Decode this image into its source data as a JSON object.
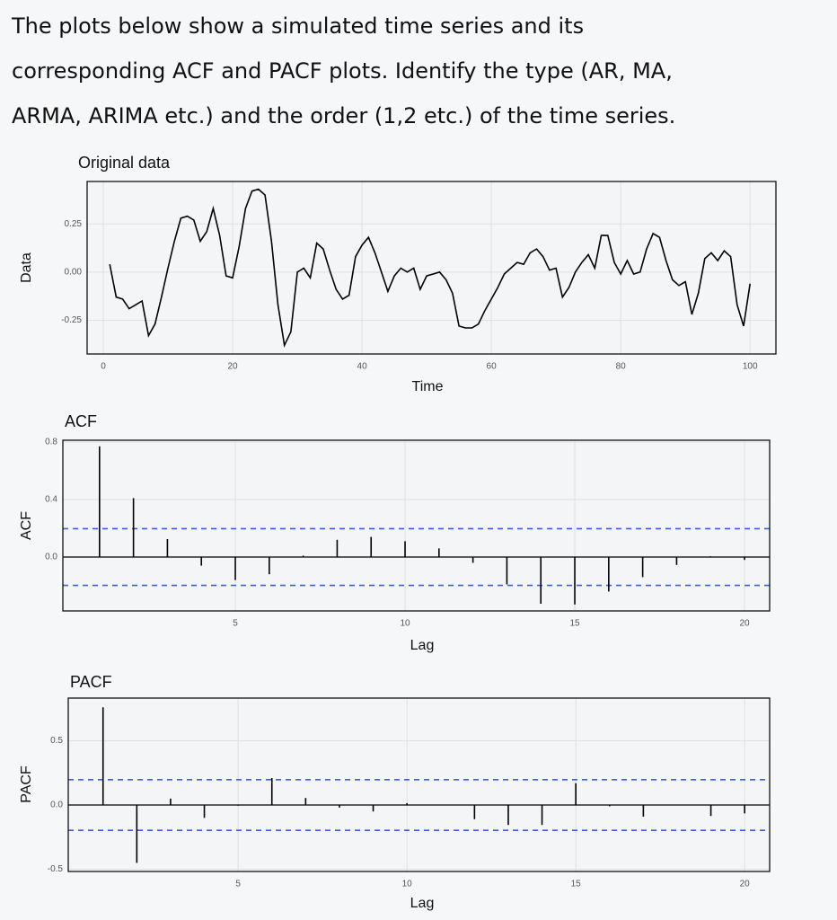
{
  "question": [
    "The plots below show a simulated time series and its",
    "corresponding ACF and PACF plots. Identify the type (AR, MA,",
    "ARMA, ARIMA etc.) and the order (1,2 etc.) of the time series."
  ],
  "chart_data": [
    {
      "type": "line",
      "title": "Original data",
      "x_label": "Time",
      "y_label": "Data",
      "color": "#000000",
      "x": [
        1,
        2,
        3,
        4,
        5,
        6,
        7,
        8,
        9,
        10,
        11,
        12,
        13,
        14,
        15,
        16,
        17,
        18,
        19,
        20,
        21,
        22,
        23,
        24,
        25,
        26,
        27,
        28,
        29,
        30,
        31,
        32,
        33,
        34,
        35,
        36,
        37,
        38,
        39,
        40,
        41,
        42,
        43,
        44,
        45,
        46,
        47,
        48,
        49,
        50,
        51,
        52,
        53,
        54,
        55,
        56,
        57,
        58,
        59,
        60,
        61,
        62,
        63,
        64,
        65,
        66,
        67,
        68,
        69,
        70,
        71,
        72,
        73,
        74,
        75,
        76,
        77,
        78,
        79,
        80,
        81,
        82,
        83,
        84,
        85,
        86,
        87,
        88,
        89,
        90,
        91,
        92,
        93,
        94,
        95,
        96,
        97,
        98,
        99,
        100
      ],
      "values": [
        0.04,
        -0.13,
        -0.14,
        -0.19,
        -0.17,
        -0.15,
        -0.33,
        -0.27,
        -0.13,
        0.02,
        0.16,
        0.28,
        0.29,
        0.27,
        0.16,
        0.21,
        0.33,
        0.19,
        -0.02,
        -0.03,
        0.13,
        0.33,
        0.42,
        0.43,
        0.4,
        0.16,
        -0.17,
        -0.38,
        -0.31,
        0.0,
        0.02,
        -0.03,
        0.15,
        0.12,
        0.01,
        -0.09,
        -0.14,
        -0.12,
        0.08,
        0.14,
        0.18,
        0.1,
        0.0,
        -0.1,
        -0.02,
        0.02,
        0.0,
        0.02,
        -0.09,
        -0.02,
        -0.01,
        0.0,
        -0.04,
        -0.11,
        -0.28,
        -0.29,
        -0.29,
        -0.27,
        -0.2,
        -0.14,
        -0.08,
        -0.01,
        0.02,
        0.05,
        0.04,
        0.1,
        0.12,
        0.08,
        0.01,
        0.02,
        -0.13,
        -0.08,
        0.0,
        0.05,
        0.09,
        0.02,
        0.19,
        0.19,
        0.05,
        -0.01,
        0.06,
        -0.01,
        0.0,
        0.12,
        0.2,
        0.18,
        0.06,
        -0.04,
        -0.07,
        -0.05,
        -0.22,
        -0.11,
        0.07,
        0.1,
        0.06,
        0.11,
        0.08,
        -0.17,
        -0.28,
        -0.06
      ],
      "xlim": [
        -2.5,
        104
      ],
      "xticks": [
        0,
        20,
        40,
        60,
        80,
        100
      ],
      "ylim": [
        -0.425,
        0.47
      ],
      "yticks": [
        0.25,
        {
          "value": 0,
          "label": "0.00"
        },
        -0.25
      ],
      "grid": true
    },
    {
      "type": "bar",
      "title": "ACF",
      "x_label": "Lag",
      "y_label": "ACF",
      "color": "#000000",
      "ci": 0.197,
      "ci_color": "#3b5bff",
      "x": [
        1,
        2,
        3,
        4,
        5,
        6,
        7,
        8,
        9,
        10,
        11,
        12,
        13,
        14,
        15,
        16,
        17,
        18,
        19,
        20
      ],
      "values": [
        0.77,
        0.41,
        0.125,
        -0.06,
        -0.16,
        -0.12,
        0.01,
        0.12,
        0.14,
        0.11,
        0.06,
        -0.04,
        -0.19,
        -0.325,
        -0.33,
        -0.24,
        -0.14,
        -0.055,
        0.005,
        -0.02
      ],
      "xlim": [
        -0.08,
        20.74
      ],
      "xticks": [
        5,
        10,
        15,
        20
      ],
      "ylim": [
        -0.375,
        0.8125
      ],
      "yticks": [
        0.8,
        0.4,
        {
          "value": 0,
          "label": "0.0"
        }
      ],
      "grid": true
    },
    {
      "type": "bar",
      "title": "PACF",
      "x_label": "Lag",
      "y_label": "PACF",
      "color": "#000000",
      "ci": 0.197,
      "ci_color": "#3b5bff",
      "x": [
        1,
        2,
        3,
        4,
        5,
        6,
        7,
        8,
        9,
        10,
        11,
        12,
        13,
        14,
        15,
        16,
        17,
        18,
        19,
        20
      ],
      "values": [
        0.76,
        -0.45,
        0.05,
        -0.1,
        -0.005,
        0.21,
        0.055,
        -0.02,
        -0.05,
        0.015,
        0.002,
        -0.11,
        -0.155,
        -0.155,
        0.17,
        -0.01,
        -0.09,
        0.001,
        -0.085,
        -0.065
      ],
      "xlim": [
        -0.03,
        20.74
      ],
      "xticks": [
        5,
        10,
        15,
        20
      ],
      "ylim": [
        -0.517,
        0.832
      ],
      "yticks": [
        0.5,
        {
          "value": 0,
          "label": "0.0"
        },
        -0.5
      ],
      "grid": true
    }
  ]
}
